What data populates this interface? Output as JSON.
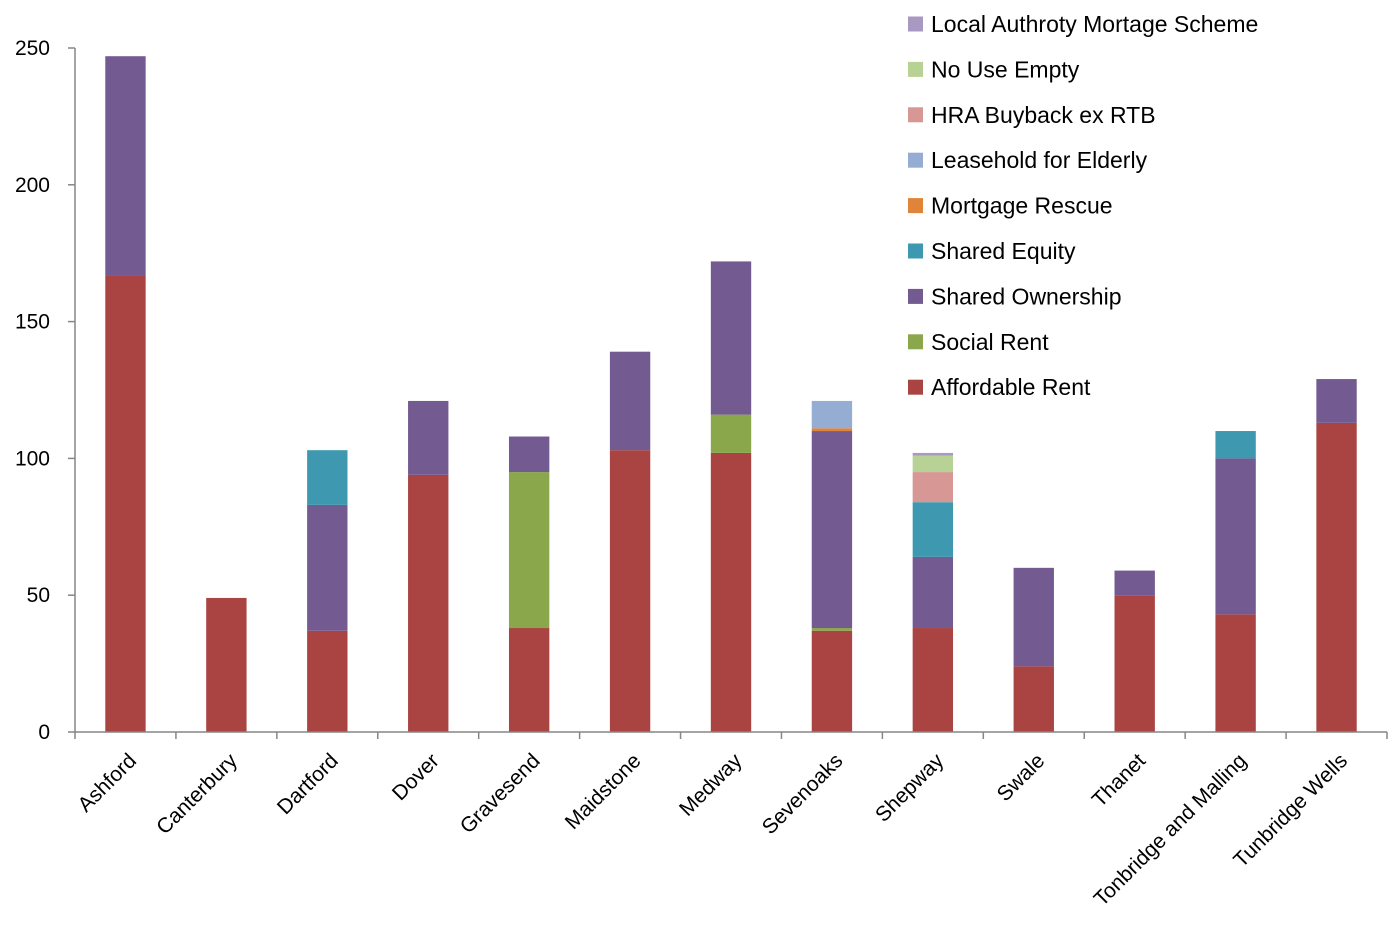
{
  "chart_data": {
    "type": "bar",
    "stacked": true,
    "title": "",
    "xlabel": "",
    "ylabel": "",
    "ylim": [
      0,
      250
    ],
    "yticks": [
      0,
      50,
      100,
      150,
      200,
      250
    ],
    "grid": false,
    "legend_position": "top-right",
    "categories": [
      "Ashford",
      "Canterbury",
      "Dartford",
      "Dover",
      "Gravesend",
      "Maidstone",
      "Medway",
      "Sevenoaks",
      "Shepway",
      "Swale",
      "Thanet",
      "Tonbridge and Malling",
      "Tunbridge Wells"
    ],
    "series": [
      {
        "name": "Affordable Rent",
        "color": "#A94442",
        "values": [
          167,
          49,
          37,
          94,
          38,
          103,
          102,
          37,
          38,
          24,
          50,
          43,
          113
        ]
      },
      {
        "name": "Social Rent",
        "color": "#8AA74C",
        "values": [
          0,
          0,
          0,
          0,
          57,
          0,
          14,
          1,
          0,
          0,
          0,
          0,
          0
        ]
      },
      {
        "name": "Shared Ownership",
        "color": "#735A91",
        "values": [
          80,
          0,
          46,
          27,
          13,
          36,
          56,
          72,
          26,
          36,
          9,
          57,
          16
        ]
      },
      {
        "name": "Shared Equity",
        "color": "#3E99B0",
        "values": [
          0,
          0,
          20,
          0,
          0,
          0,
          0,
          0,
          20,
          0,
          0,
          10,
          0
        ]
      },
      {
        "name": "Mortgage Rescue",
        "color": "#E0843A",
        "values": [
          0,
          0,
          0,
          0,
          0,
          0,
          0,
          1,
          0,
          0,
          0,
          0,
          0
        ]
      },
      {
        "name": "Leasehold for Elderly",
        "color": "#96ADD3",
        "values": [
          0,
          0,
          0,
          0,
          0,
          0,
          0,
          10,
          0,
          0,
          0,
          0,
          0
        ]
      },
      {
        "name": "HRA Buyback ex RTB",
        "color": "#D69795",
        "values": [
          0,
          0,
          0,
          0,
          0,
          0,
          0,
          0,
          11,
          0,
          0,
          0,
          0
        ]
      },
      {
        "name": "No Use Empty",
        "color": "#B8D195",
        "values": [
          0,
          0,
          0,
          0,
          0,
          0,
          0,
          0,
          6,
          0,
          0,
          0,
          0
        ]
      },
      {
        "name": "Local Authroty Mortage Scheme",
        "color": "#A899C3",
        "values": [
          0,
          0,
          0,
          0,
          0,
          0,
          0,
          0,
          1,
          0,
          0,
          0,
          0
        ]
      }
    ]
  }
}
